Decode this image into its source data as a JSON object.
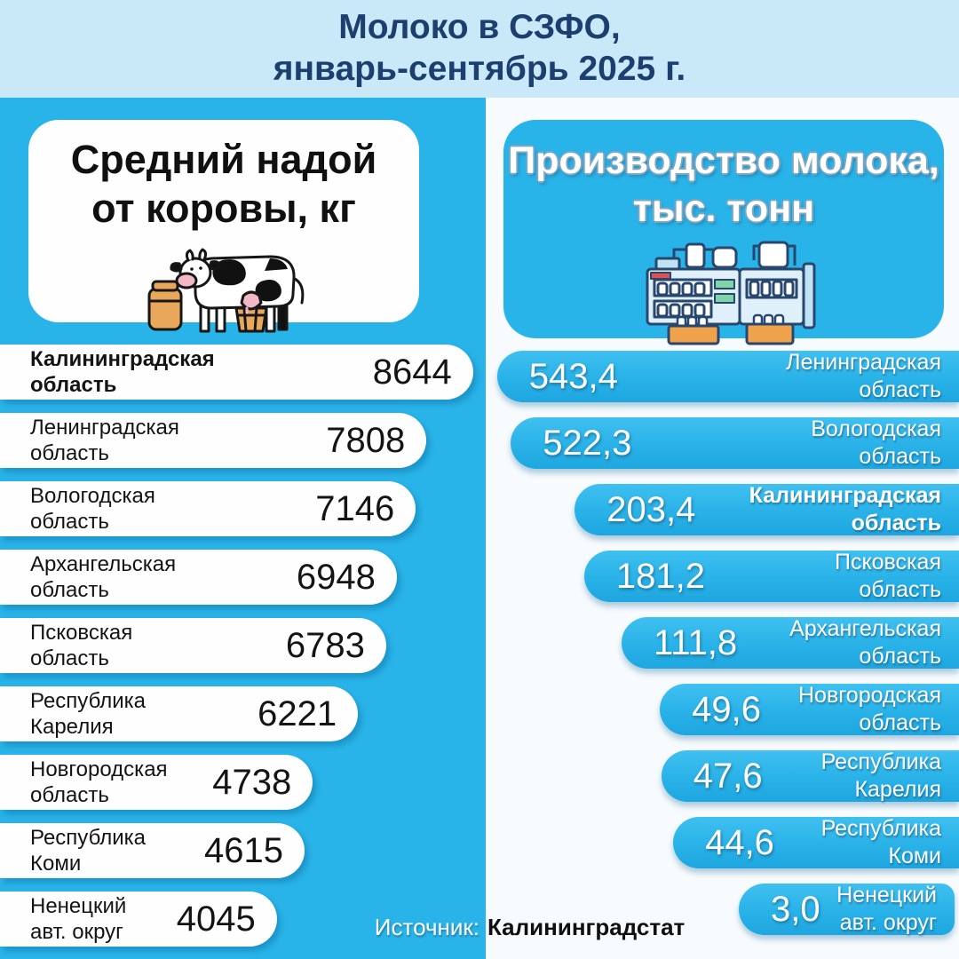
{
  "colors": {
    "accent_blue": "#29b4e9",
    "band_blue": "#c9e9f8",
    "navy_text": "#1d3f70",
    "card_white": "#fefefe"
  },
  "title": {
    "line1": "Молоко в СЗФО,",
    "line2": "январь-сентябрь 2025 г."
  },
  "left_panel": {
    "header": "Средний надой\nот коровы, кг",
    "icon": "cow-icon"
  },
  "right_panel": {
    "header": "Производство молока,\nтыс. тонн",
    "icon": "dairy-factory-icon"
  },
  "source": {
    "label": "Источник:",
    "value": "Калининградстат"
  },
  "chart_data": [
    {
      "type": "bar",
      "orientation": "horizontal",
      "panel": "left",
      "title": "Средний надой от коровы, кг",
      "unit": "кг",
      "value_anchor": "right-inside",
      "bar_color": "#fefefe",
      "label_color": "#141414",
      "rows": [
        {
          "region": "Калининградская\nобласть",
          "value": 8644,
          "display": "8644",
          "bold": true,
          "width_pct": 97.4
        },
        {
          "region": "Ленинградская\nобласть",
          "value": 7808,
          "display": "7808",
          "bold": false,
          "width_pct": 87.8
        },
        {
          "region": "Вологодская\nобласть",
          "value": 7146,
          "display": "7146",
          "bold": false,
          "width_pct": 85.6
        },
        {
          "region": "Архангельская\nобласть",
          "value": 6948,
          "display": "6948",
          "bold": false,
          "width_pct": 81.7
        },
        {
          "region": "Псковская\nобласть",
          "value": 6783,
          "display": "6783",
          "bold": false,
          "width_pct": 79.5
        },
        {
          "region": "Республика\nКарелия",
          "value": 6221,
          "display": "6221",
          "bold": false,
          "width_pct": 73.7
        },
        {
          "region": "Новгородская\nобласть",
          "value": 4738,
          "display": "4738",
          "bold": false,
          "width_pct": 64.4
        },
        {
          "region": "Республика\nКоми",
          "value": 4615,
          "display": "4615",
          "bold": false,
          "width_pct": 62.7
        },
        {
          "region": "Ненецкий\nавт. округ",
          "value": 4045,
          "display": "4045",
          "bold": false,
          "width_pct": 57.0
        }
      ]
    },
    {
      "type": "bar",
      "orientation": "horizontal",
      "panel": "right",
      "title": "Производство молока, тыс. тонн",
      "unit": "тыс. тонн",
      "value_anchor": "left-inside",
      "bar_color": "#29b4e9",
      "label_color": "#ffffff",
      "rows": [
        {
          "region": "Ленинградская\nобласть",
          "value": 543.4,
          "display": "543,4",
          "bold": false,
          "width_pct": 97.6
        },
        {
          "region": "Вологодская\nобласть",
          "value": 522.3,
          "display": "522,3",
          "bold": false,
          "width_pct": 94.7
        },
        {
          "region": "Калининградская\nобласть",
          "value": 203.4,
          "display": "203,4",
          "bold": true,
          "width_pct": 81.2
        },
        {
          "region": "Псковская\nобласть",
          "value": 181.2,
          "display": "181,2",
          "bold": false,
          "width_pct": 79.2
        },
        {
          "region": "Архангельская\nобласть",
          "value": 111.8,
          "display": "111,8",
          "bold": false,
          "width_pct": 71.3
        },
        {
          "region": "Новгородская\nобласть",
          "value": 49.6,
          "display": "49,6",
          "bold": false,
          "width_pct": 63.2
        },
        {
          "region": "Республика\nКарелия",
          "value": 47.6,
          "display": "47,6",
          "bold": false,
          "width_pct": 62.9
        },
        {
          "region": "Республика\nКоми",
          "value": 44.6,
          "display": "44,6",
          "bold": false,
          "width_pct": 60.4
        },
        {
          "region": "Ненецкий\nавт. округ",
          "value": 3.0,
          "display": "3,0",
          "bold": false,
          "width_pct": 45.6
        }
      ]
    }
  ]
}
